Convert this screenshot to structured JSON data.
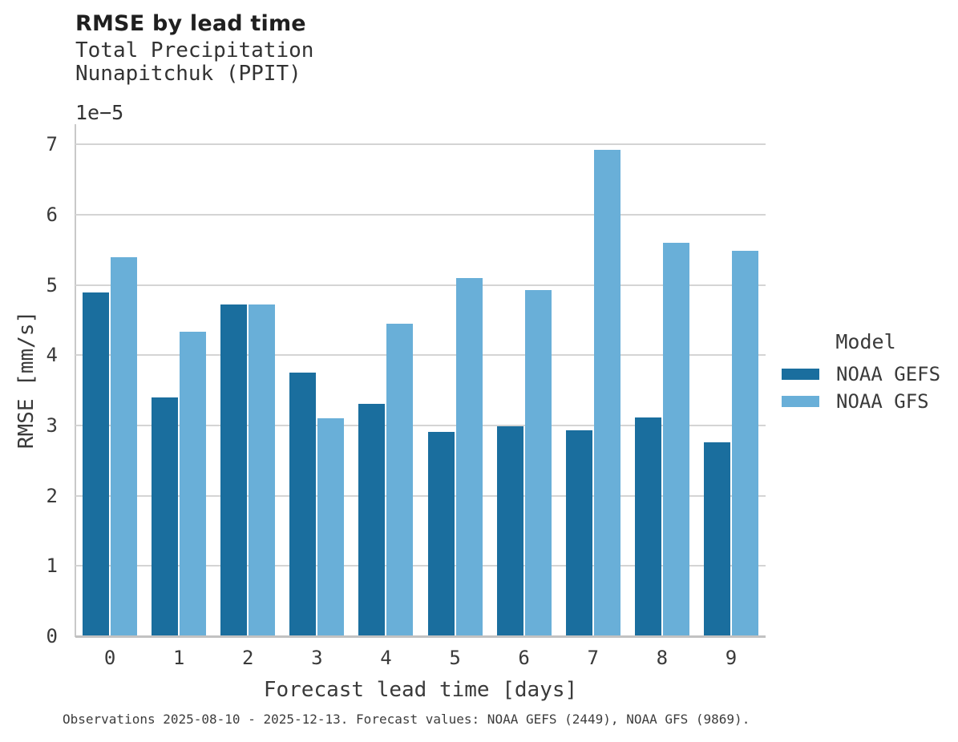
{
  "chart_data": {
    "type": "bar",
    "title": "RMSE by lead time",
    "subtitle_line1": "Total Precipitation",
    "subtitle_line2": "Nunapitchuk (PPIT)",
    "y_offset_label": "1e−5",
    "xlabel": "Forecast lead time [days]",
    "ylabel": "RMSE [mm/s]",
    "categories": [
      "0",
      "1",
      "2",
      "3",
      "4",
      "5",
      "6",
      "7",
      "8",
      "9"
    ],
    "series": [
      {
        "name": "NOAA GEFS",
        "color": "#1a6e9e",
        "values": [
          4.9,
          3.4,
          4.72,
          3.75,
          3.31,
          2.91,
          2.99,
          2.93,
          3.12,
          2.76
        ]
      },
      {
        "name": "NOAA GFS",
        "color": "#69afd8",
        "values": [
          5.4,
          4.33,
          4.72,
          3.1,
          4.45,
          5.1,
          4.93,
          6.92,
          5.6,
          5.49
        ]
      }
    ],
    "yticks": [
      0,
      1,
      2,
      3,
      4,
      5,
      6,
      7
    ],
    "ylim": [
      0,
      7.29
    ],
    "grid": true,
    "legend": {
      "title": "Model",
      "position": "right-center"
    }
  },
  "footer": {
    "caption": "Observations 2025-08-10 - 2025-12-13. Forecast values: NOAA GEFS (2449), NOAA GFS (9869)."
  }
}
